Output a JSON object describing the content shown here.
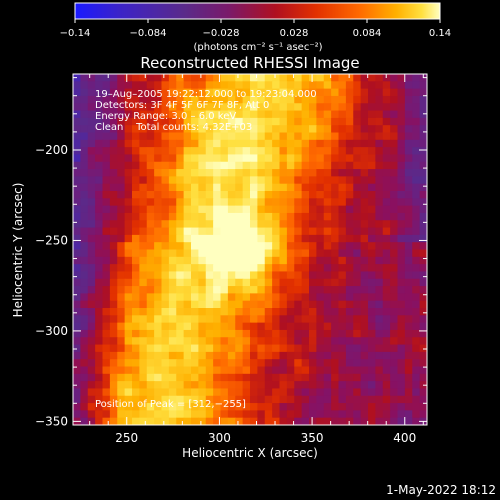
{
  "footer": {
    "timestamp": "1-May-2022 18:12"
  },
  "chart_data": {
    "type": "heatmap",
    "title": "Reconstructed RHESSI Image",
    "xlabel": "Heliocentric X (arcsec)",
    "ylabel": "Heliocentric Y (arcsec)",
    "xlim": [
      221,
      412
    ],
    "ylim": [
      -352,
      -158
    ],
    "xticks": [
      250,
      300,
      350,
      400
    ],
    "yticks": [
      -200,
      -250,
      -300,
      -350
    ],
    "xtick_labels": [
      "250",
      "300",
      "350",
      "400"
    ],
    "ytick_labels": [
      "−200",
      "−250",
      "−300",
      "−350"
    ],
    "colorbar": {
      "min": -0.14,
      "max": 0.14,
      "ticks": [
        -0.14,
        -0.084,
        -0.028,
        0.028,
        0.084,
        0.14
      ],
      "tick_labels": [
        "−0.14",
        "−0.084",
        "−0.028",
        "0.028",
        "0.084",
        "0.14"
      ],
      "unit_label": "(photons cm⁻² s⁻¹ asec⁻²)"
    },
    "annotations": [
      "19–Aug–2005 19:22:12.000 to 19:23:04.000",
      "Detectors: 3F 4F 5F 6F 7F 8F, Att 0",
      "Energy Range: 3.0 – 6.0 keV",
      "Clean    Total counts: 4.32E+03"
    ],
    "peak_label": "Position of Peak = [312,−255]",
    "peak_position": [
      312,
      -255
    ],
    "colors": {
      "colormap": [
        "#1a1aff",
        "#3b23c9",
        "#5a2a8a",
        "#6a2080",
        "#8a1060",
        "#b01020",
        "#e23000",
        "#ff6a00",
        "#ffb000",
        "#ffe040",
        "#ffffc0"
      ],
      "text": "#ffffff",
      "background": "#000000"
    }
  }
}
